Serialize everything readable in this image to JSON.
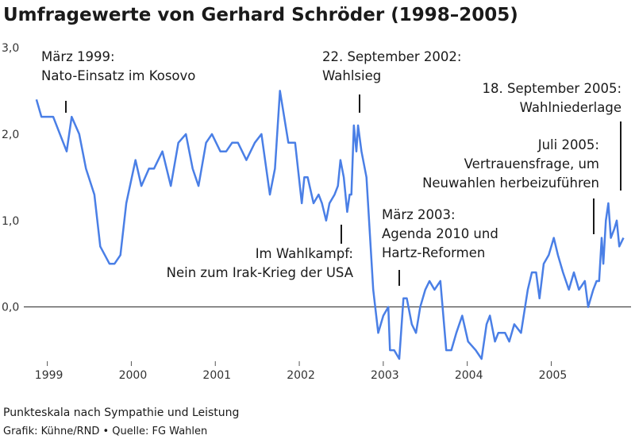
{
  "chart_data": {
    "type": "line",
    "title": "Umfragewerte von Gerhard Schröder (1998–2005)",
    "subtitle": "Punkteskala nach Sympathie und Leistung",
    "source": "Grafik: Kühne/RND • Quelle: FG Wahlen",
    "xlim": [
      1998.72,
      2005.95
    ],
    "xticks": [
      1999,
      2000,
      2001,
      2002,
      2003,
      2004,
      2005
    ],
    "ylim": [
      -0.6,
      3.0
    ],
    "yticks": [
      {
        "value": 3.0,
        "label": "3,0"
      },
      {
        "value": 2.0,
        "label": "2,0"
      },
      {
        "value": 1.0,
        "label": "1,0"
      },
      {
        "value": 0.0,
        "label": "0,0"
      }
    ],
    "annotations": [
      [
        "März 1999:",
        "Nato-Einsatz im Kosovo"
      ],
      [
        "22. September 2002:",
        "Wahlsieg"
      ],
      [
        "18. September 2005:",
        "Wahlniederlage"
      ],
      [
        "Juli 2005:",
        "Vertrauensfrage, um",
        "Neuwahlen herbeizuführen"
      ],
      [
        "März 2003:",
        "Agenda 2010 und",
        "Hartz-Reformen"
      ],
      [
        "Im Wahlkampf:",
        "Nein zum Irak-Krieg der USA"
      ]
    ],
    "series": [
      {
        "color": "#4a7fe6",
        "x": [
          1998.87,
          1998.93,
          1999.0,
          1999.07,
          1999.15,
          1999.23,
          1999.29,
          1999.38,
          1999.46,
          1999.56,
          1999.63,
          1999.74,
          1999.8,
          1999.87,
          1999.94,
          2000.05,
          2000.12,
          2000.21,
          2000.27,
          2000.37,
          2000.47,
          2000.56,
          2000.65,
          2000.73,
          2000.8,
          2000.89,
          2000.96,
          2001.06,
          2001.13,
          2001.2,
          2001.27,
          2001.37,
          2001.47,
          2001.55,
          2001.65,
          2001.71,
          2001.77,
          2001.87,
          2001.95,
          2002.03,
          2002.06,
          2002.1,
          2002.17,
          2002.23,
          2002.27,
          2002.32,
          2002.36,
          2002.42,
          2002.46,
          2002.49,
          2002.53,
          2002.57,
          2002.6,
          2002.62,
          2002.65,
          2002.68,
          2002.7,
          2002.74,
          2002.8,
          2002.88,
          2002.94,
          2003.0,
          2003.06,
          2003.08,
          2003.13,
          2003.19,
          2003.24,
          2003.28,
          2003.34,
          2003.39,
          2003.44,
          2003.5,
          2003.55,
          2003.61,
          2003.68,
          2003.75,
          2003.81,
          2003.87,
          2003.94,
          2004.01,
          2004.1,
          2004.17,
          2004.23,
          2004.27,
          2004.33,
          2004.37,
          2004.45,
          2004.5,
          2004.56,
          2004.64,
          2004.72,
          2004.77,
          2004.82,
          2004.86,
          2004.91,
          2004.97,
          2005.03,
          2005.08,
          2005.14,
          2005.21,
          2005.27,
          2005.33,
          2005.4,
          2005.44,
          2005.5,
          2005.54,
          2005.57,
          2005.6,
          2005.62,
          2005.65,
          2005.68,
          2005.71,
          2005.75,
          2005.78,
          2005.81,
          2005.86
        ],
        "values": [
          2.4,
          2.2,
          2.2,
          2.2,
          2.0,
          1.8,
          2.2,
          2.0,
          1.6,
          1.3,
          0.7,
          0.5,
          0.5,
          0.6,
          1.2,
          1.7,
          1.4,
          1.6,
          1.6,
          1.8,
          1.4,
          1.9,
          2.0,
          1.6,
          1.4,
          1.9,
          2.0,
          1.8,
          1.8,
          1.9,
          1.9,
          1.7,
          1.9,
          2.0,
          1.3,
          1.6,
          2.5,
          1.9,
          1.9,
          1.2,
          1.5,
          1.5,
          1.2,
          1.3,
          1.2,
          1.0,
          1.2,
          1.3,
          1.4,
          1.7,
          1.5,
          1.1,
          1.3,
          1.3,
          2.1,
          1.8,
          2.1,
          1.8,
          1.5,
          0.2,
          -0.3,
          -0.1,
          0.0,
          -0.5,
          -0.5,
          -0.6,
          0.1,
          0.1,
          -0.2,
          -0.3,
          0.0,
          0.2,
          0.3,
          0.2,
          0.3,
          -0.5,
          -0.5,
          -0.3,
          -0.1,
          -0.4,
          -0.5,
          -0.6,
          -0.2,
          -0.1,
          -0.4,
          -0.3,
          -0.3,
          -0.4,
          -0.2,
          -0.3,
          0.2,
          0.4,
          0.4,
          0.1,
          0.5,
          0.6,
          0.8,
          0.6,
          0.4,
          0.2,
          0.4,
          0.2,
          0.3,
          0.0,
          0.2,
          0.3,
          0.3,
          0.8,
          0.5,
          1.0,
          1.2,
          0.8,
          0.9,
          1.0,
          0.7,
          0.8
        ]
      }
    ]
  }
}
